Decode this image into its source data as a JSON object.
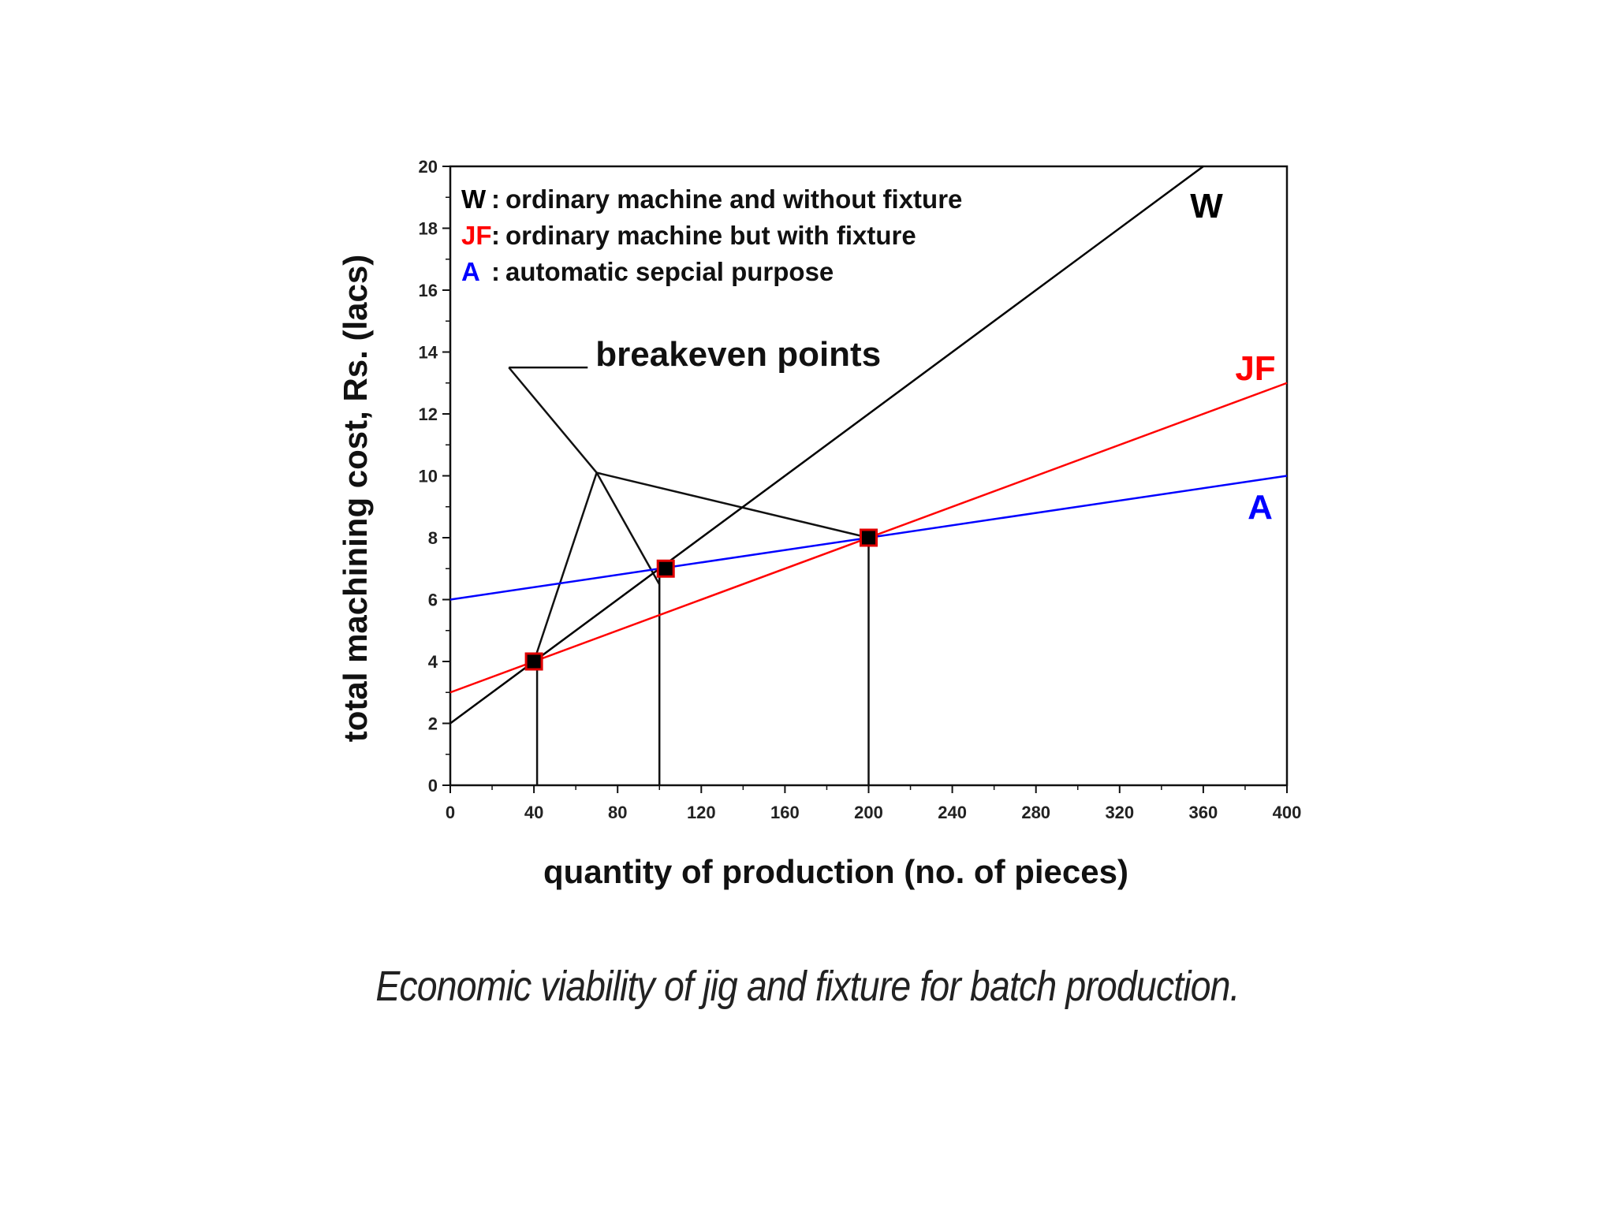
{
  "chart_data": {
    "type": "line",
    "title": "",
    "xlabel": "quantity of production (no. of pieces)",
    "ylabel": "total machining cost, Rs. (lacs)",
    "xlim": [
      0,
      400
    ],
    "ylim": [
      0,
      20
    ],
    "xticks": [
      0,
      40,
      80,
      120,
      160,
      200,
      240,
      280,
      320,
      360,
      400
    ],
    "yticks": [
      0,
      2,
      4,
      6,
      8,
      10,
      12,
      14,
      16,
      18,
      20
    ],
    "grid": false,
    "legend_position": "top-left",
    "series": [
      {
        "name": "W",
        "description": "ordinary machine and without fixture",
        "color": "#000000",
        "x": [
          0,
          360
        ],
        "y": [
          2,
          20
        ]
      },
      {
        "name": "JF",
        "description": "ordinary machine but with fixture",
        "color": "#ff0000",
        "x": [
          0,
          400
        ],
        "y": [
          3,
          13
        ]
      },
      {
        "name": "A",
        "description": "automatic sepcial purpose",
        "color": "#0000ff",
        "x": [
          0,
          400
        ],
        "y": [
          6,
          10
        ]
      }
    ],
    "breakeven_points": [
      {
        "x": 40,
        "y": 4
      },
      {
        "x": 103,
        "y": 7
      },
      {
        "x": 200,
        "y": 8
      }
    ],
    "annotation": {
      "text": "breakeven points",
      "anchor_x": 28,
      "anchor_y": 13.5,
      "hub_x": 70,
      "hub_y": 10.1
    }
  },
  "legend": {
    "separator": ":",
    "entries": [
      {
        "key": "W",
        "text": "ordinary machine and without fixture",
        "color": "#000000"
      },
      {
        "key": "JF",
        "text": "ordinary machine but with fixture",
        "color": "#ff0000"
      },
      {
        "key": "A",
        "text": "automatic sepcial purpose",
        "color": "#0000ff"
      }
    ]
  },
  "caption": "Economic viability of jig and fixture for batch production."
}
